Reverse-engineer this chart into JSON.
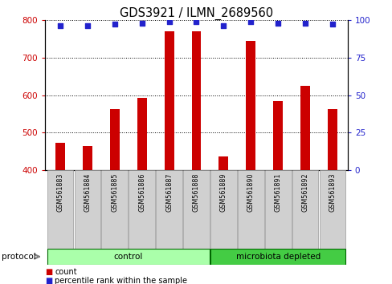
{
  "title": "GDS3921 / ILMN_2689560",
  "samples": [
    "GSM561883",
    "GSM561884",
    "GSM561885",
    "GSM561886",
    "GSM561887",
    "GSM561888",
    "GSM561889",
    "GSM561890",
    "GSM561891",
    "GSM561892",
    "GSM561893"
  ],
  "counts": [
    473,
    465,
    562,
    592,
    770,
    770,
    437,
    745,
    585,
    625,
    562
  ],
  "percentile_ranks": [
    96,
    96,
    97,
    98,
    99,
    99,
    96,
    99,
    98,
    98,
    97
  ],
  "control_count": 6,
  "ylim_left": [
    400,
    800
  ],
  "ylim_right": [
    0,
    100
  ],
  "yticks_left": [
    400,
    500,
    600,
    700,
    800
  ],
  "yticks_right": [
    0,
    25,
    50,
    75,
    100
  ],
  "bar_color": "#cc0000",
  "dot_color": "#2222cc",
  "control_color": "#aaffaa",
  "microbiota_color": "#44cc44",
  "tick_label_color_left": "#cc0000",
  "tick_label_color_right": "#2222cc",
  "legend_count_color": "#cc0000",
  "legend_pct_color": "#2222cc",
  "label_bg_color": "#d0d0d0",
  "label_border_color": "#999999"
}
